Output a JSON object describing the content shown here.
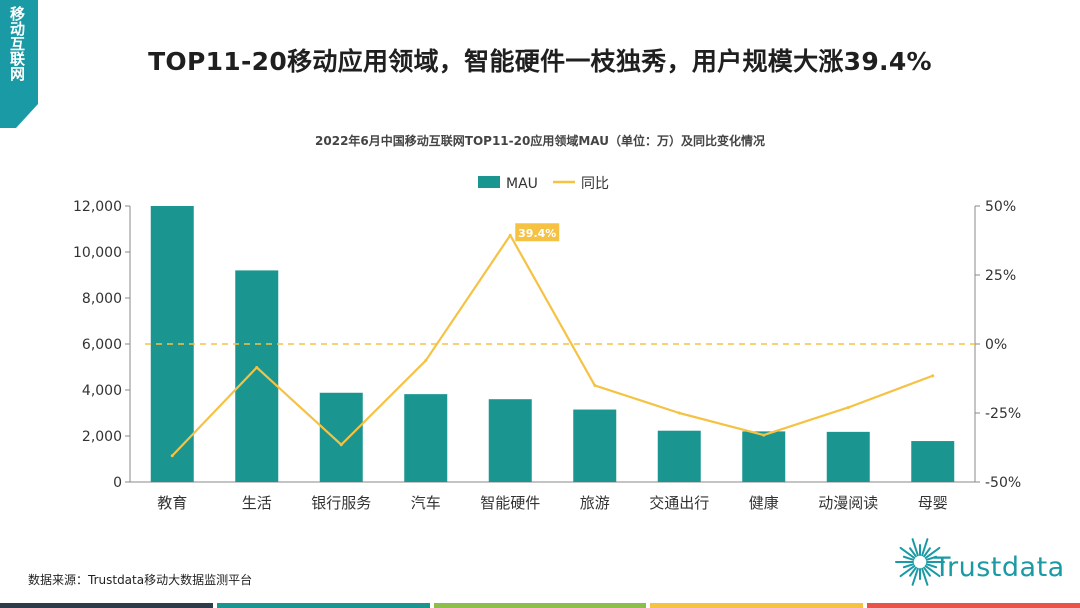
{
  "corner_tag": {
    "text": "移动互联网",
    "color": "#1a9aa5"
  },
  "headline": "TOP11-20移动应用领域，智能硬件一枝独秀，用户规模大涨39.4%",
  "chart_data": {
    "type": "bar",
    "title": "2022年6月中国移动互联网TOP11-20应用领域MAU（单位：万）及同比变化情况",
    "categories": [
      "教育",
      "生活",
      "银行服务",
      "汽车",
      "智能硬件",
      "旅游",
      "交通出行",
      "健康",
      "动漫阅读",
      "母婴"
    ],
    "series": [
      {
        "name": "MAU",
        "type": "bar",
        "axis": "left",
        "color": "#1a9590",
        "values": [
          12000,
          9200,
          3880,
          3820,
          3600,
          3150,
          2230,
          2200,
          2180,
          1780
        ]
      },
      {
        "name": "同比",
        "type": "line",
        "axis": "right",
        "color": "#f5c244",
        "values": [
          -40.5,
          -8.5,
          -36.5,
          -6.0,
          39.4,
          -15.0,
          -25.0,
          -33.0,
          -23.0,
          -11.5
        ]
      }
    ],
    "y_left": {
      "min": 0,
      "max": 12000,
      "ticks": [
        "0",
        "2,000",
        "4,000",
        "6,000",
        "8,000",
        "10,000",
        "12,000"
      ]
    },
    "y_right": {
      "min": -50,
      "max": 50,
      "ticks": [
        "-50%",
        "-25%",
        "0%",
        "25%",
        "50%"
      ]
    },
    "zero_reference_line": {
      "axis": "right",
      "value": 0,
      "style": "dashed",
      "color": "#f5c244"
    },
    "highlight_label": {
      "category": "智能硬件",
      "text": "39.4%",
      "color": "#f5c244"
    },
    "legend": {
      "position": "top-center",
      "items": [
        "MAU",
        "同比"
      ]
    },
    "grid": false
  },
  "source": "数据来源：Trustdata移动大数据监测平台",
  "logo": {
    "text": "Trustdata",
    "color": "#1a9aa5"
  },
  "bottom_bar_colors": [
    "#2d3a4a",
    "#1a9590",
    "#8cbf4a",
    "#f5c244",
    "#e8544a"
  ]
}
